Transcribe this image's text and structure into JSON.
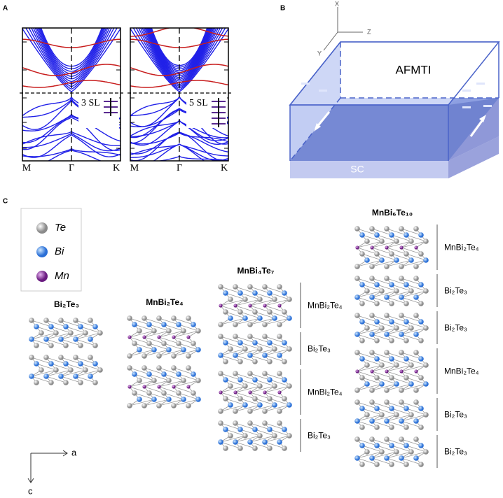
{
  "panel_a": {
    "label": "A",
    "plots": [
      {
        "annotation": "3 SL",
        "x_labels": [
          "M",
          "Γ",
          "K"
        ]
      },
      {
        "annotation": "5 SL",
        "x_labels": [
          "M",
          "Γ",
          "K"
        ]
      }
    ]
  },
  "panel_b": {
    "label": "B",
    "axes": [
      "X",
      "Z",
      "Y"
    ],
    "top_label": "AFMTI",
    "bottom_label": "SC"
  },
  "panel_c": {
    "label": "C",
    "legend": [
      "Te",
      "Bi",
      "Mn"
    ],
    "structures": [
      {
        "name": "Bi₂Te₃"
      },
      {
        "name": "MnBi₂Te₄"
      },
      {
        "name": "MnBi₄Te₇",
        "blocks": [
          "MnBi₂Te₄",
          "Bi₂Te₃",
          "MnBi₂Te₄",
          "Bi₂Te₃"
        ]
      },
      {
        "name": "MnBi₆Te₁₀",
        "blocks": [
          "MnBi₂Te₄",
          "Bi₂Te₃",
          "Bi₂Te₃",
          "MnBi₂Te₄",
          "Bi₂Te₃",
          "Bi₂Te₃"
        ]
      }
    ],
    "axes": [
      "a",
      "c"
    ]
  }
}
